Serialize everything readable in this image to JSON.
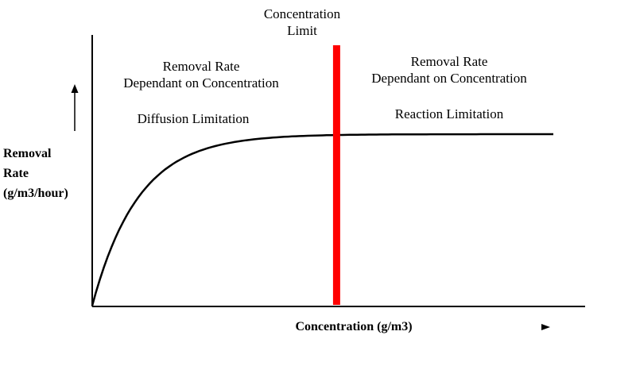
{
  "chart_data": {
    "type": "line",
    "title": "",
    "xlabel": "Concentration (g/m3)",
    "ylabel": [
      "Removal",
      "Rate",
      "(g/m3/hour)"
    ],
    "x_ticks": [],
    "y_ticks": [],
    "grid": false,
    "series": [
      {
        "shape": "saturating",
        "x": [
          0,
          1,
          2,
          3,
          4,
          5,
          6,
          7,
          8,
          9,
          10
        ],
        "y": [
          0,
          0.37,
          0.63,
          0.8,
          0.9,
          0.96,
          0.99,
          1.0,
          1.0,
          1.0,
          1.0
        ]
      }
    ],
    "threshold": {
      "x": 5.3,
      "label": [
        "Concentration",
        "Limit"
      ],
      "color": "#ff0000"
    },
    "annotations": {
      "left_title": [
        "Removal Rate",
        "Dependant on Concentration"
      ],
      "left_sub": "Diffusion Limitation",
      "right_title": [
        "Removal Rate",
        "Dependant on Concentration"
      ],
      "right_sub": "Reaction Limitation"
    }
  }
}
